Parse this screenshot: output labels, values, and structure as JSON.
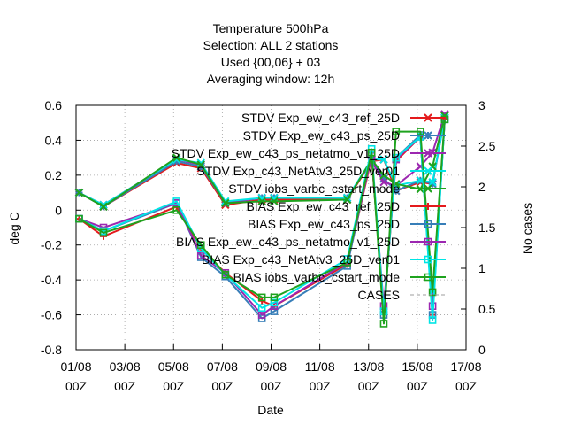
{
  "chart_data": {
    "type": "line",
    "title_lines": [
      "Temperature 500hPa",
      "Selection: ALL       2 stations",
      "Used {00,06} + 03",
      "Averaging window: 12h"
    ],
    "xlabel": "Date",
    "ylabel": "deg C",
    "y2label": "No cases",
    "xlim": [
      "2023-08-01",
      "2023-08-17"
    ],
    "ylim": [
      -0.8,
      0.6
    ],
    "y2lim": [
      0,
      3
    ],
    "yticks": [
      -0.8,
      -0.6,
      -0.4,
      -0.2,
      0,
      0.2,
      0.4,
      0.6
    ],
    "y2ticks": [
      0,
      0.5,
      1,
      1.5,
      2,
      2.5,
      3
    ],
    "x_tick_labels": [
      {
        "x": "2023-08-01",
        "line1": "01/08",
        "line2": "00Z"
      },
      {
        "x": "2023-08-03",
        "line1": "03/08",
        "line2": "00Z"
      },
      {
        "x": "2023-08-05",
        "line1": "05/08",
        "line2": "00Z"
      },
      {
        "x": "2023-08-07",
        "line1": "07/08",
        "line2": "00Z"
      },
      {
        "x": "2023-08-09",
        "line1": "09/08",
        "line2": "00Z"
      },
      {
        "x": "2023-08-11",
        "line1": "11/08",
        "line2": "00Z"
      },
      {
        "x": "2023-08-13",
        "line1": "13/08",
        "line2": "00Z"
      },
      {
        "x": "2023-08-15",
        "line1": "15/08",
        "line2": "00Z"
      },
      {
        "x": "2023-08-17",
        "line1": "17/08",
        "line2": "00Z"
      }
    ],
    "y_tick_labels": [
      "-0.8",
      "-0.6",
      "-0.4",
      "-0.2",
      "0",
      "0.2",
      "0.4",
      "0.6"
    ],
    "y2_tick_labels": [
      "0",
      "0.5",
      "1",
      "1.5",
      "2",
      "2.5",
      "3"
    ],
    "x": [
      "2023-08-01 03:00",
      "2023-08-02 03:00",
      "2023-08-05 03:00",
      "2023-08-06 03:00",
      "2023-08-07 03:00",
      "2023-08-08 15:00",
      "2023-08-09 03:00",
      "2023-08-12 03:00",
      "2023-08-13 03:00",
      "2023-08-13 15:00",
      "2023-08-14 03:00",
      "2023-08-15 03:00",
      "2023-08-15 15:00",
      "2023-08-16 03:00"
    ],
    "grid": true,
    "legend_position": "top-right",
    "series": [
      {
        "name": "STDV Exp_ew_c43_ref_25D",
        "color": "#e41a1c",
        "marker": "x",
        "axis": "y",
        "values": [
          0.1,
          0.02,
          0.27,
          0.24,
          0.03,
          0.06,
          0.06,
          0.06,
          0.28,
          0.29,
          0.11,
          0.16,
          0.15,
          0.54
        ]
      },
      {
        "name": "STDV Exp_ew_c43_ps_25D",
        "color": "#377eb8",
        "marker": "star",
        "axis": "y",
        "values": [
          0.1,
          0.02,
          0.28,
          0.25,
          0.04,
          0.07,
          0.07,
          0.07,
          0.28,
          0.18,
          0.11,
          0.17,
          0.15,
          0.53
        ]
      },
      {
        "name": "STDV Exp_ew_c43_ps_netatmo_v1_25D",
        "color": "#9c27b0",
        "marker": "x",
        "axis": "y",
        "values": [
          0.1,
          0.03,
          0.29,
          0.26,
          0.04,
          0.07,
          0.07,
          0.07,
          0.28,
          0.16,
          0.14,
          0.25,
          0.33,
          0.55
        ]
      },
      {
        "name": "STDV Exp_c43_NetAtv3_25D_ver01",
        "color": "#00e5e5",
        "marker": "x",
        "axis": "y",
        "values": [
          0.1,
          0.03,
          0.29,
          0.27,
          0.05,
          0.07,
          0.07,
          0.07,
          0.29,
          0.29,
          0.14,
          0.17,
          0.16,
          0.53
        ]
      },
      {
        "name": "STDV iobs_varbc_cstart_mode",
        "color": "#1ea31e",
        "marker": "x",
        "axis": "y",
        "values": [
          0.1,
          0.02,
          0.3,
          0.26,
          0.04,
          0.05,
          0.05,
          0.06,
          0.29,
          0.2,
          0.15,
          0.12,
          0.25,
          0.54
        ]
      },
      {
        "name": "BIAS Exp_ew_c43_ref_25D",
        "color": "#e41a1c",
        "marker": "plus",
        "axis": "y",
        "values": [
          -0.05,
          -0.15,
          0.02,
          -0.22,
          -0.36,
          -0.52,
          -0.55,
          -0.31,
          0.3,
          -0.58,
          0.28,
          0.42,
          -0.6,
          0.52
        ]
      },
      {
        "name": "BIAS Exp_ew_c43_ps_25D",
        "color": "#377eb8",
        "marker": "square",
        "axis": "y",
        "values": [
          -0.05,
          -0.12,
          0.04,
          -0.27,
          -0.38,
          -0.62,
          -0.58,
          -0.32,
          0.32,
          -0.6,
          0.3,
          0.43,
          -0.6,
          0.52
        ]
      },
      {
        "name": "BIAS Exp_ew_c43_ps_netatmo_v1_25D",
        "color": "#9c27b0",
        "marker": "square",
        "axis": "y",
        "values": [
          -0.05,
          -0.1,
          0.04,
          -0.26,
          -0.36,
          -0.6,
          -0.55,
          -0.3,
          0.31,
          -0.55,
          0.29,
          0.42,
          -0.55,
          0.52
        ]
      },
      {
        "name": "BIAS Exp_c43_NetAtv3_25D_ver01",
        "color": "#00e5e5",
        "marker": "square",
        "axis": "y",
        "values": [
          -0.05,
          -0.12,
          0.05,
          -0.22,
          -0.37,
          -0.56,
          -0.53,
          -0.28,
          0.35,
          -0.58,
          0.3,
          0.42,
          -0.63,
          0.52
        ]
      },
      {
        "name": "BIAS iobs_varbc_cstart_mode",
        "color": "#1ea31e",
        "marker": "square",
        "axis": "y",
        "values": [
          -0.05,
          -0.13,
          0.0,
          -0.2,
          -0.37,
          -0.5,
          -0.5,
          -0.3,
          0.33,
          -0.65,
          0.45,
          0.45,
          -0.47,
          0.52
        ]
      },
      {
        "name": "CASES",
        "color": "#9e9e9e",
        "marker": "none",
        "axis": "y2",
        "dash": "4,3",
        "values": [
          2,
          2,
          2,
          2,
          2,
          2,
          2,
          2,
          2,
          2,
          2,
          2,
          2,
          2
        ]
      }
    ]
  }
}
